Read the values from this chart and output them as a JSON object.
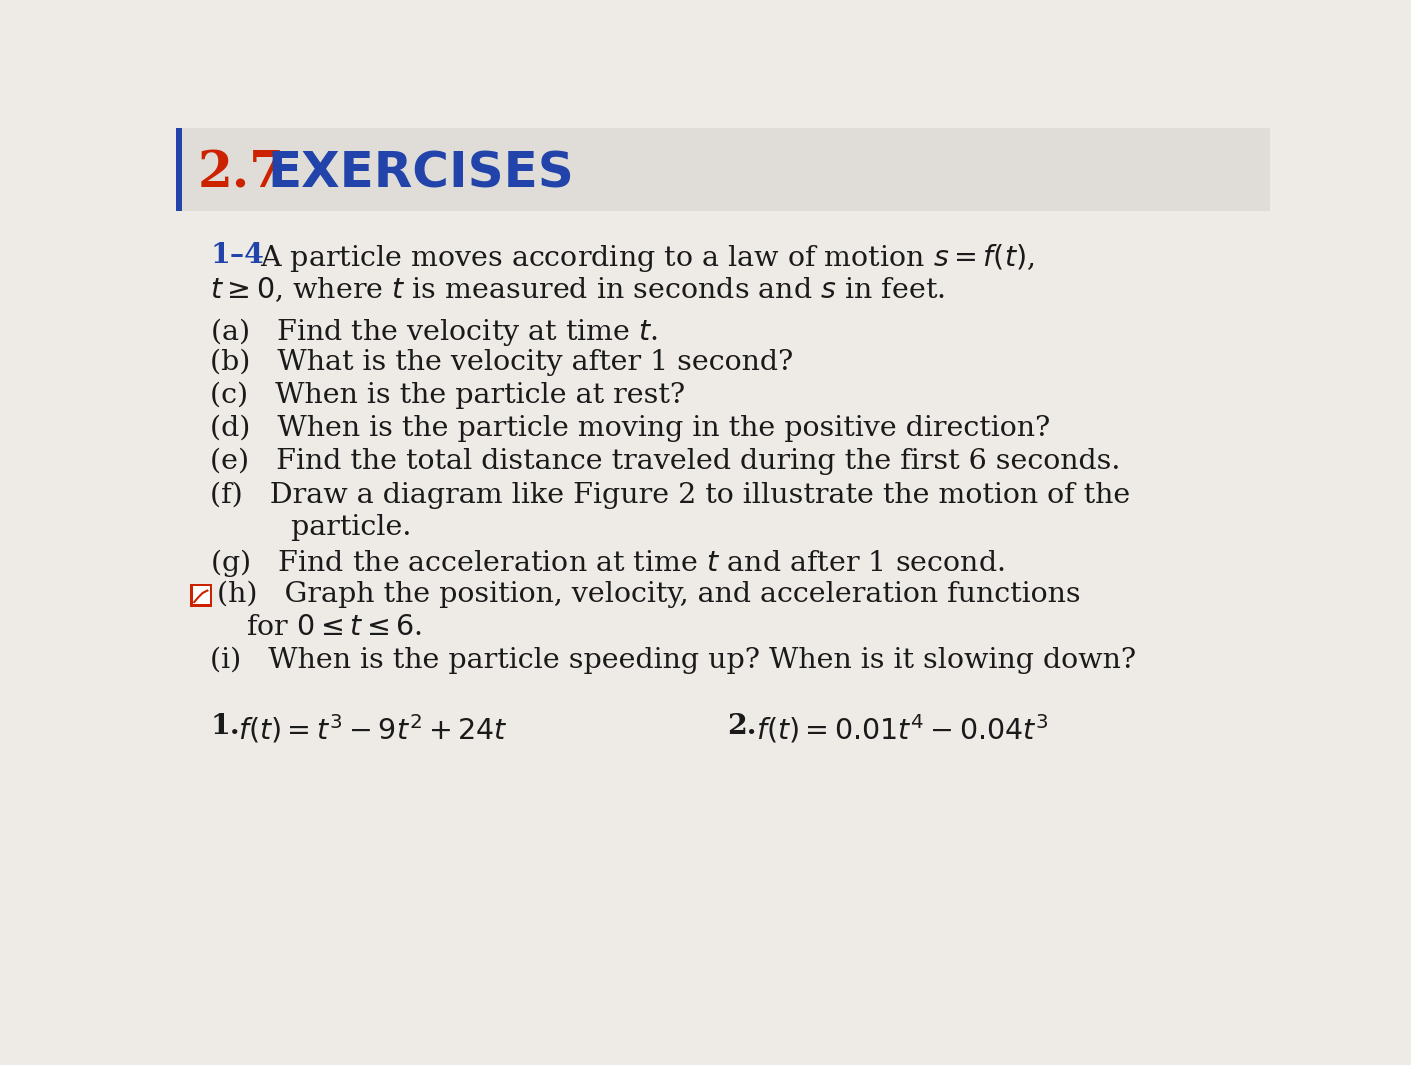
{
  "bg_color": "#eeebe7",
  "header_bg": "#e0ddd9",
  "section_number": "2.7",
  "section_title": "EXERCISES",
  "number_color": "#cc2200",
  "title_color": "#2244aa",
  "text_color": "#1a1a1a",
  "header_fontsize": 36,
  "body_fontsize": 20.5,
  "problem_fontsize": 20.5,
  "intro_label": "1–4",
  "icon_color": "#cc2200"
}
